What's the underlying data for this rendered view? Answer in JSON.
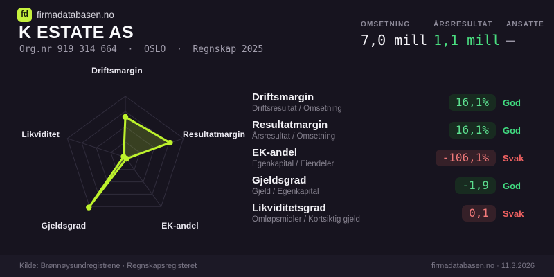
{
  "brand": {
    "logo_text": "fd",
    "site": "firmadatabasen.no",
    "accent_color": "#c6f13d"
  },
  "header": {
    "company": "K ESTATE AS",
    "meta": "Org.nr 919 314 664  ·  OSLO  ·  Regnskap 2025"
  },
  "stats": [
    {
      "label": "OMSETNING",
      "value": "7,0 mill",
      "color": "#f2f1f5"
    },
    {
      "label": "ÅRSRESULTAT",
      "value": "1,1 mill",
      "color": "#4ade80"
    },
    {
      "label": "ANSATTE",
      "value": "–",
      "color": "#9b97a6"
    }
  ],
  "chart_data": {
    "type": "radar",
    "title": "",
    "axes": [
      "Driftsmargin",
      "Resultatmargin",
      "EK-andel",
      "Gjeldsgrad",
      "Likviditet"
    ],
    "values_normalized": [
      0.66,
      0.77,
      0.03,
      1.02,
      0.03
    ],
    "display_values": [
      "16,1%",
      "16,1%",
      "-106,1%",
      "-1,9",
      "0,1"
    ],
    "grid_rings": 4,
    "max": 1,
    "grid_color": "#312d3d",
    "stroke_color": "#bdf22c",
    "fill_color": "rgba(189,242,44,0.2)",
    "legend": "none"
  },
  "metrics": [
    {
      "name": "Driftsmargin",
      "formula": "Driftsresultat / Omsetning",
      "value": "16,1%",
      "status": "God",
      "tone": "good"
    },
    {
      "name": "Resultatmargin",
      "formula": "Årsresultat / Omsetning",
      "value": "16,1%",
      "status": "God",
      "tone": "good"
    },
    {
      "name": "EK-andel",
      "formula": "Egenkapital / Eiendeler",
      "value": "-106,1%",
      "status": "Svak",
      "tone": "bad"
    },
    {
      "name": "Gjeldsgrad",
      "formula": "Gjeld / Egenkapital",
      "value": "-1,9",
      "status": "God",
      "tone": "good"
    },
    {
      "name": "Likviditetsgrad",
      "formula": "Omløpsmidler / Kortsiktig gjeld",
      "value": "0,1",
      "status": "Svak",
      "tone": "bad"
    }
  ],
  "footer": {
    "left": "Kilde: Brønnøysundregistrene · Regnskapsregisteret",
    "right": "firmadatabasen.no · 11.3.2026"
  }
}
